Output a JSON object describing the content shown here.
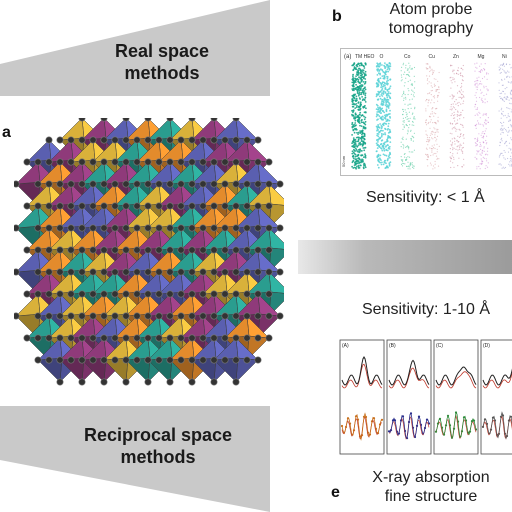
{
  "labels": {
    "real_space": "Real space methods",
    "real_line1": "Real space",
    "real_line2": "methods",
    "reciprocal_line1": "Reciprocal space",
    "reciprocal_line2": "methods"
  },
  "panels": {
    "a": "a",
    "b": "b",
    "e": "e"
  },
  "atom_probe": {
    "title_line1": "Atom probe",
    "title_line2": "tomography",
    "sensitivity": "Sensitivity: < 1 Å",
    "columns": [
      "TM HEO",
      "O",
      "Co",
      "Cu",
      "Zn",
      "Mg",
      "Ni"
    ],
    "tag": "(a)",
    "scale": "50 nm",
    "colors": [
      "#1aa58a",
      "#5fd4d8",
      "#4cc79a",
      "#d9a3a8",
      "#c98a9e",
      "#d08fd6",
      "#a0a0d0"
    ]
  },
  "xafs": {
    "title_line1": "X-ray absorption",
    "title_line2": "fine structure",
    "sensitivity": "Sensitivity: 1-10 Å",
    "tags": [
      "(A)",
      "(B)",
      "(C)",
      "(D)"
    ],
    "colors": [
      "#c8701c",
      "#2a2e8c",
      "#2f8a3a",
      "#555555"
    ]
  },
  "crystal": {
    "colors": [
      "#e38b2c",
      "#8f3a7a",
      "#2a9d8f",
      "#5a5fb0",
      "#d9b13a"
    ]
  }
}
